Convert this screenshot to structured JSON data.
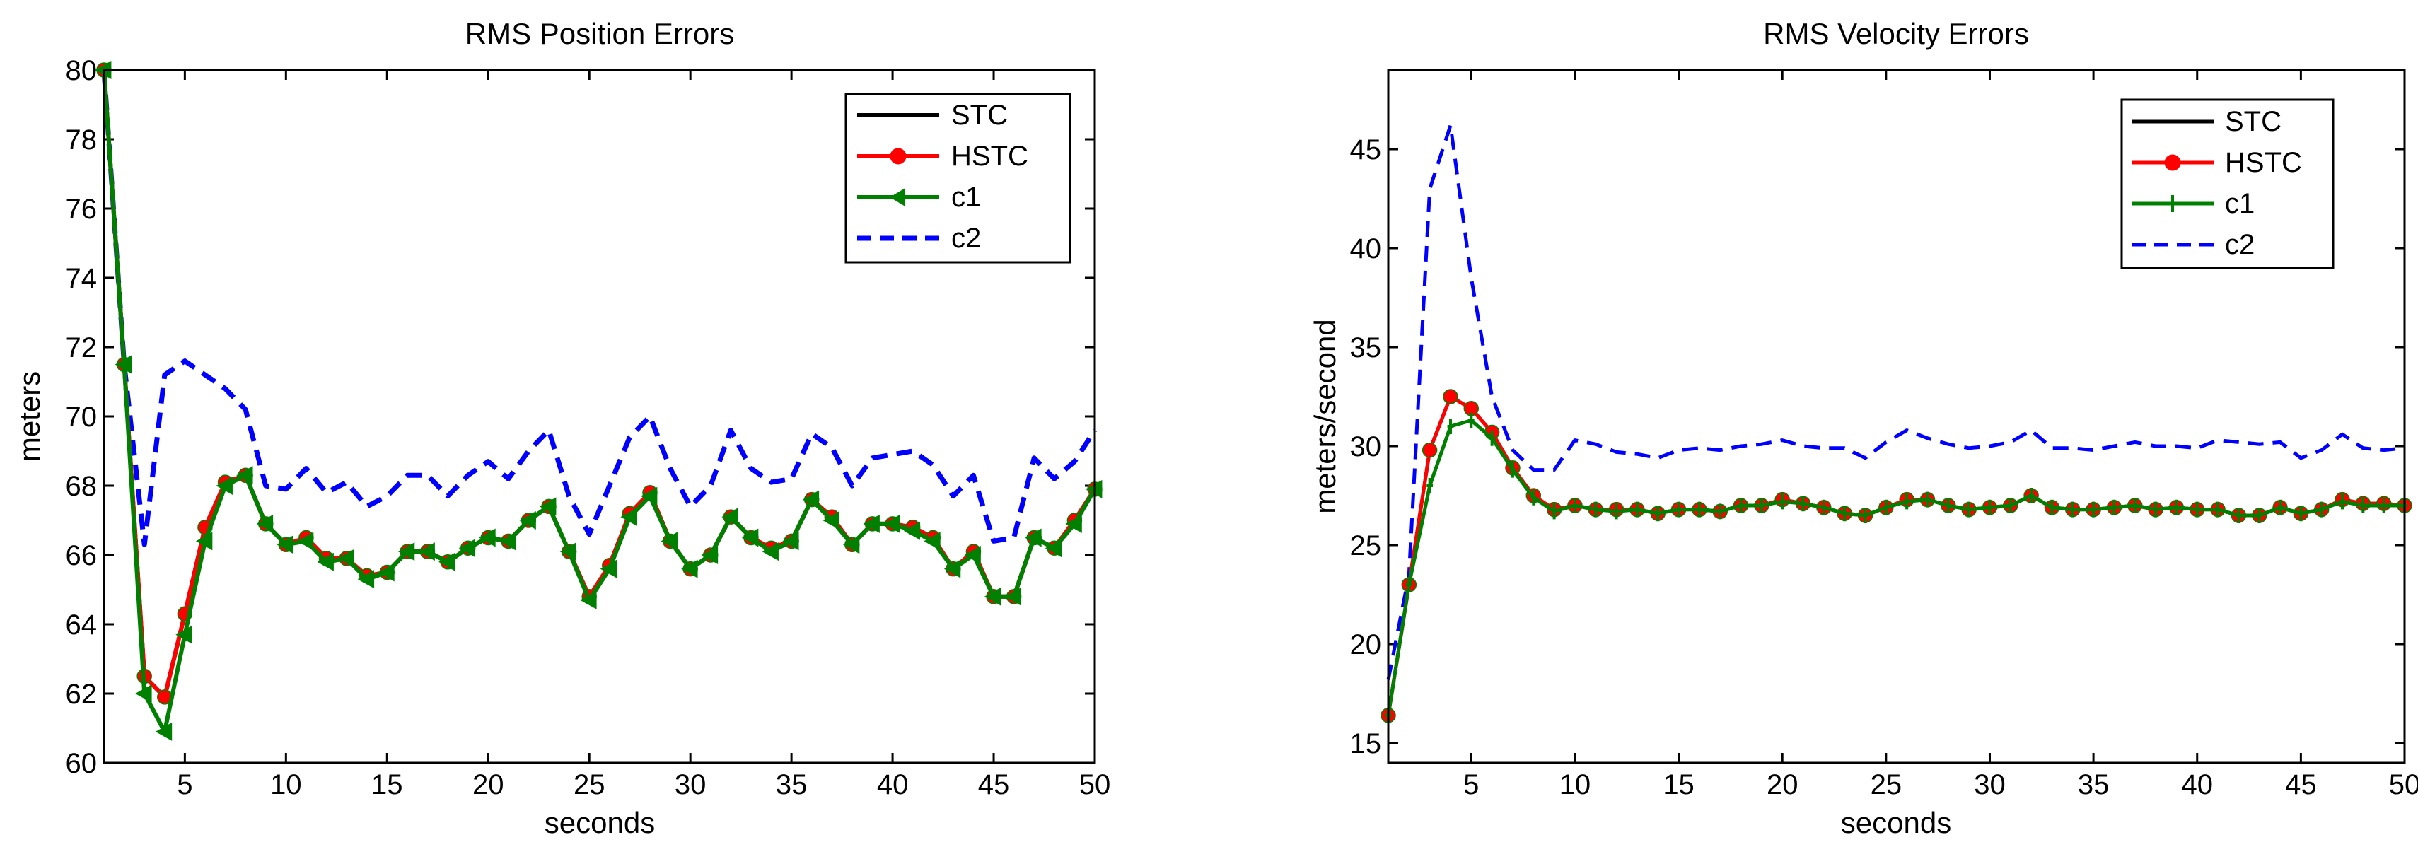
{
  "colors": {
    "stc": "#000000",
    "hstc": "#ff0000",
    "c1": "#008000",
    "c2": "#0000ff",
    "axis": "#000000",
    "bg": "#ffffff"
  },
  "chart_data": [
    {
      "type": "line",
      "title": "RMS Position Errors",
      "xlabel": "seconds",
      "ylabel": "meters",
      "xlim": [
        1,
        50
      ],
      "ylim": [
        60,
        80
      ],
      "grid": false,
      "legend_position": "top-right",
      "x_tick_labels": [
        "5",
        "10",
        "15",
        "20",
        "25",
        "30",
        "35",
        "40",
        "45",
        "50"
      ],
      "y_tick_labels": [
        "60",
        "62",
        "64",
        "66",
        "68",
        "70",
        "72",
        "74",
        "76",
        "78",
        "80"
      ],
      "series": [
        {
          "name": "STC",
          "style": "solid",
          "marker": "none",
          "values": [
            80,
            71.5,
            62.5,
            61.9,
            64.3,
            66.8,
            68.1,
            68.3,
            66.9,
            66.3,
            66.5,
            65.9,
            65.9,
            65.4,
            65.5,
            66.1,
            66.1,
            65.8,
            66.2,
            66.5,
            66.4,
            67.0,
            67.4,
            66.1,
            64.8,
            65.7,
            67.2,
            67.8,
            66.4,
            65.6,
            66.0,
            67.1,
            66.5,
            66.2,
            66.4,
            67.6,
            67.1,
            66.3,
            66.9,
            66.9,
            66.8,
            66.5,
            65.6,
            66.1,
            64.8,
            64.8,
            66.5,
            66.2,
            67.0,
            67.9
          ]
        },
        {
          "name": "HSTC",
          "style": "solid",
          "marker": "circle",
          "values": [
            80,
            71.5,
            62.5,
            61.9,
            64.3,
            66.8,
            68.1,
            68.3,
            66.9,
            66.3,
            66.5,
            65.9,
            65.9,
            65.4,
            65.5,
            66.1,
            66.1,
            65.8,
            66.2,
            66.5,
            66.4,
            67.0,
            67.4,
            66.1,
            64.8,
            65.7,
            67.2,
            67.8,
            66.4,
            65.6,
            66.0,
            67.1,
            66.5,
            66.2,
            66.4,
            67.6,
            67.1,
            66.3,
            66.9,
            66.9,
            66.8,
            66.5,
            65.6,
            66.1,
            64.8,
            64.8,
            66.5,
            66.2,
            67.0,
            67.9
          ]
        },
        {
          "name": "c1",
          "style": "solid",
          "marker": "triangle-left",
          "values": [
            80,
            71.5,
            62.0,
            60.9,
            63.7,
            66.4,
            68.0,
            68.3,
            66.9,
            66.3,
            66.4,
            65.8,
            65.9,
            65.3,
            65.5,
            66.1,
            66.1,
            65.8,
            66.2,
            66.5,
            66.4,
            67.0,
            67.4,
            66.1,
            64.7,
            65.6,
            67.1,
            67.7,
            66.4,
            65.6,
            66.0,
            67.1,
            66.5,
            66.1,
            66.4,
            67.6,
            67.0,
            66.3,
            66.9,
            66.9,
            66.7,
            66.4,
            65.6,
            66.0,
            64.8,
            64.8,
            66.5,
            66.2,
            66.9,
            67.9
          ]
        },
        {
          "name": "c2",
          "style": "dashed",
          "marker": "none",
          "values": [
            80,
            71.5,
            66.3,
            71.2,
            71.6,
            71.2,
            70.8,
            70.2,
            68.0,
            67.9,
            68.5,
            67.8,
            68.1,
            67.4,
            67.7,
            68.3,
            68.3,
            67.7,
            68.3,
            68.7,
            68.2,
            69.0,
            69.6,
            67.7,
            66.6,
            68.0,
            69.4,
            70.0,
            68.5,
            67.4,
            68.0,
            69.6,
            68.5,
            68.1,
            68.2,
            69.5,
            69.1,
            68.0,
            68.8,
            68.9,
            69.0,
            68.6,
            67.7,
            68.3,
            66.4,
            66.5,
            68.8,
            68.2,
            68.7,
            69.6
          ]
        }
      ],
      "x": [
        1,
        2,
        3,
        4,
        5,
        6,
        7,
        8,
        9,
        10,
        11,
        12,
        13,
        14,
        15,
        16,
        17,
        18,
        19,
        20,
        21,
        22,
        23,
        24,
        25,
        26,
        27,
        28,
        29,
        30,
        31,
        32,
        33,
        34,
        35,
        36,
        37,
        38,
        39,
        40,
        41,
        42,
        43,
        44,
        45,
        46,
        47,
        48,
        49,
        50
      ]
    },
    {
      "type": "line",
      "title": "RMS Velocity Errors",
      "xlabel": "seconds",
      "ylabel": "meters/second",
      "xlim": [
        1,
        50
      ],
      "ylim": [
        14,
        49
      ],
      "grid": false,
      "legend_position": "top-right",
      "x_tick_labels": [
        "5",
        "10",
        "15",
        "20",
        "25",
        "30",
        "35",
        "40",
        "45",
        "50"
      ],
      "y_tick_labels": [
        "15",
        "20",
        "25",
        "30",
        "35",
        "40",
        "45"
      ],
      "series": [
        {
          "name": "STC",
          "style": "solid",
          "marker": "none",
          "values": [
            16.4,
            23.0,
            29.8,
            32.5,
            31.9,
            30.7,
            28.9,
            27.5,
            26.8,
            27.0,
            26.8,
            26.8,
            26.8,
            26.6,
            26.8,
            26.8,
            26.7,
            27.0,
            27.0,
            27.3,
            27.1,
            26.9,
            26.6,
            26.5,
            26.9,
            27.3,
            27.3,
            27.0,
            26.8,
            26.9,
            27.0,
            27.5,
            26.9,
            26.8,
            26.8,
            26.9,
            27.0,
            26.8,
            26.9,
            26.8,
            26.8,
            26.5,
            26.5,
            26.9,
            26.6,
            26.8,
            27.3,
            27.1,
            27.1,
            27.0
          ]
        },
        {
          "name": "HSTC",
          "style": "solid",
          "marker": "circle",
          "values": [
            16.4,
            23.0,
            29.8,
            32.5,
            31.9,
            30.7,
            28.9,
            27.5,
            26.8,
            27.0,
            26.8,
            26.8,
            26.8,
            26.6,
            26.8,
            26.8,
            26.7,
            27.0,
            27.0,
            27.3,
            27.1,
            26.9,
            26.6,
            26.5,
            26.9,
            27.3,
            27.3,
            27.0,
            26.8,
            26.9,
            27.0,
            27.5,
            26.9,
            26.8,
            26.8,
            26.9,
            27.0,
            26.8,
            26.9,
            26.8,
            26.8,
            26.5,
            26.5,
            26.9,
            26.6,
            26.8,
            27.3,
            27.1,
            27.1,
            27.0
          ]
        },
        {
          "name": "c1",
          "style": "solid",
          "marker": "plus",
          "values": [
            16.4,
            23.0,
            28.0,
            31.0,
            31.3,
            30.4,
            28.8,
            27.4,
            26.7,
            27.0,
            26.8,
            26.7,
            26.8,
            26.6,
            26.8,
            26.8,
            26.7,
            27.0,
            27.0,
            27.2,
            27.1,
            26.9,
            26.6,
            26.5,
            26.9,
            27.2,
            27.3,
            27.0,
            26.8,
            26.9,
            27.0,
            27.5,
            26.9,
            26.8,
            26.8,
            26.9,
            27.0,
            26.8,
            26.9,
            26.8,
            26.8,
            26.5,
            26.5,
            26.9,
            26.6,
            26.8,
            27.2,
            27.0,
            27.0,
            27.0
          ]
        },
        {
          "name": "c2",
          "style": "dashed",
          "marker": "none",
          "values": [
            18.2,
            23.5,
            43.0,
            46.2,
            38.5,
            32.5,
            29.8,
            28.8,
            28.8,
            30.3,
            30.1,
            29.7,
            29.6,
            29.4,
            29.8,
            29.9,
            29.8,
            30.0,
            30.1,
            30.3,
            30.0,
            29.9,
            29.9,
            29.4,
            30.2,
            30.8,
            30.4,
            30.1,
            29.9,
            30.0,
            30.2,
            30.8,
            29.9,
            29.9,
            29.8,
            30.0,
            30.2,
            30.0,
            30.0,
            29.9,
            30.3,
            30.2,
            30.1,
            30.2,
            29.4,
            29.8,
            30.6,
            29.9,
            29.8,
            29.9
          ]
        }
      ],
      "x": [
        1,
        2,
        3,
        4,
        5,
        6,
        7,
        8,
        9,
        10,
        11,
        12,
        13,
        14,
        15,
        16,
        17,
        18,
        19,
        20,
        21,
        22,
        23,
        24,
        25,
        26,
        27,
        28,
        29,
        30,
        31,
        32,
        33,
        34,
        35,
        36,
        37,
        38,
        39,
        40,
        41,
        42,
        43,
        44,
        45,
        46,
        47,
        48,
        49,
        50
      ]
    }
  ]
}
